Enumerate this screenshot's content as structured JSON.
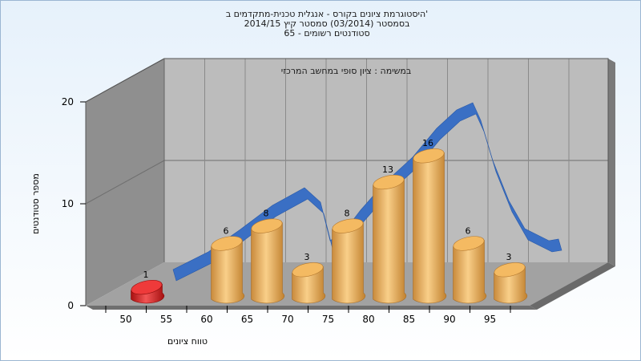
{
  "chart_data": {
    "type": "bar",
    "title_lines": [
      "היסטוגרמת ציונים בקורס - אנגלית טכנית-מתקדמים ב'",
      "בסמסטר  (03/2014)  סמסטר קיץ 2014/15",
      "סטודנטים רשומים - 65"
    ],
    "subtitle": "במשימה : ציון סופי במחשב המרכזי",
    "xlabel": "טווח ציונים",
    "ylabel": "מספר סטודנטים",
    "x_ticks": [
      "50",
      "55",
      "60",
      "65",
      "70",
      "75",
      "80",
      "85",
      "90",
      "95"
    ],
    "y_ticks": [
      "0",
      "10",
      "20"
    ],
    "ylim": [
      0,
      20
    ],
    "bars": [
      {
        "value": 1,
        "label": "1",
        "color": "#dd1f1f"
      },
      {
        "value": 6,
        "label": "6",
        "color": "#e7a957"
      },
      {
        "value": 8,
        "label": "8",
        "color": "#e7a957"
      },
      {
        "value": 3,
        "label": "3",
        "color": "#e7a957"
      },
      {
        "value": 8,
        "label": "8",
        "color": "#e7a957"
      },
      {
        "value": 13,
        "label": "13",
        "color": "#e7a957"
      },
      {
        "value": 16,
        "label": "16",
        "color": "#e7a957"
      },
      {
        "value": 6,
        "label": "6",
        "color": "#e7a957"
      },
      {
        "value": 3,
        "label": "3",
        "color": "#e7a957"
      }
    ],
    "curve_color": "#3a6fc4",
    "legend": "none",
    "grid": true
  }
}
